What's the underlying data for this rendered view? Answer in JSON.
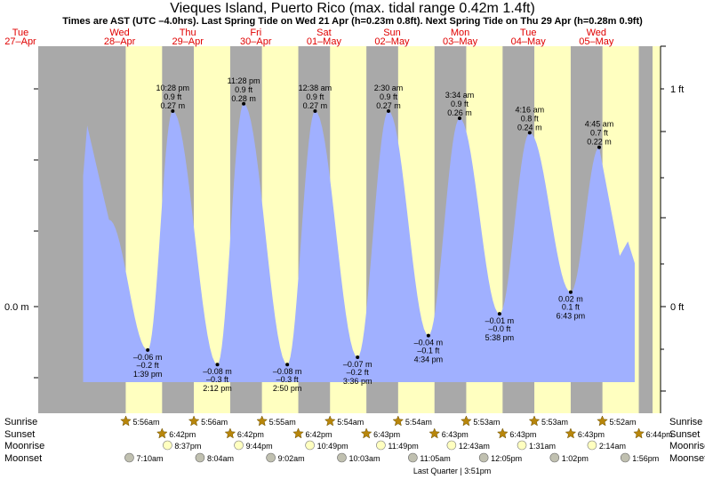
{
  "title": "Vieques Island, Puerto Rico (max. tidal range 0.42m 1.4ft)",
  "subtitle": "Times are AST (UTC –4.0hrs). Last Spring Tide on Wed 21 Apr (h=0.23m 0.8ft). Next Spring Tide on Thu 29 Apr (h=0.28m 0.9ft)",
  "colors": {
    "day": "#ffffc0",
    "night": "#a9a9a9",
    "water": "#a0b0ff",
    "day_label": "#e00000",
    "sun": "#b8860b",
    "moon_rise": "#ffffc0",
    "moon_set": "#c0c0b0"
  },
  "axes": {
    "left_label": "0.0 m",
    "right_labels": [
      "1 ft",
      "0 ft"
    ]
  },
  "days": [
    {
      "name": "Tue",
      "date": "27–Apr"
    },
    {
      "name": "Wed",
      "date": "28–Apr"
    },
    {
      "name": "Thu",
      "date": "29–Apr"
    },
    {
      "name": "Fri",
      "date": "30–Apr"
    },
    {
      "name": "Sat",
      "date": "01–May"
    },
    {
      "name": "Sun",
      "date": "02–May"
    },
    {
      "name": "Mon",
      "date": "03–May"
    },
    {
      "name": "Tue",
      "date": "04–May"
    },
    {
      "name": "Wed",
      "date": "05–May"
    }
  ],
  "chart_data": {
    "type": "area",
    "y_unit": "m",
    "extremes": [
      {
        "type": "low",
        "time": "1:39 pm",
        "m": "–0.06 m",
        "ft": "–0.2 ft",
        "value": -0.06
      },
      {
        "type": "high",
        "time": "10:28 pm",
        "m": "0.27 m",
        "ft": "0.9 ft",
        "value": 0.27
      },
      {
        "type": "low",
        "time": "2:12 pm",
        "m": "–0.08 m",
        "ft": "–0.3 ft",
        "value": -0.08
      },
      {
        "type": "high",
        "time": "11:28 pm",
        "m": "0.28 m",
        "ft": "0.9 ft",
        "value": 0.28
      },
      {
        "type": "low",
        "time": "2:50 pm",
        "m": "–0.08 m",
        "ft": "–0.3 ft",
        "value": -0.08
      },
      {
        "type": "high",
        "time": "12:38 am",
        "m": "0.27 m",
        "ft": "0.9 ft",
        "value": 0.27
      },
      {
        "type": "low",
        "time": "3:36 pm",
        "m": "–0.07 m",
        "ft": "–0.2 ft",
        "value": -0.07
      },
      {
        "type": "high",
        "time": "2:30 am",
        "m": "0.27 m",
        "ft": "0.9 ft",
        "value": 0.27
      },
      {
        "type": "low",
        "time": "4:34 pm",
        "m": "–0.04 m",
        "ft": "–0.1 ft",
        "value": -0.04
      },
      {
        "type": "high",
        "time": "3:34 am",
        "m": "0.26 m",
        "ft": "0.9 ft",
        "value": 0.26
      },
      {
        "type": "low",
        "time": "5:38 pm",
        "m": "–0.01 m",
        "ft": "–0.0 ft",
        "value": -0.01
      },
      {
        "type": "high",
        "time": "4:16 am",
        "m": "0.24 m",
        "ft": "0.8 ft",
        "value": 0.24
      },
      {
        "type": "low",
        "time": "6:43 pm",
        "m": "0.02 m",
        "ft": "0.1 ft",
        "value": 0.02
      },
      {
        "type": "high",
        "time": "4:45 am",
        "m": "0.22 m",
        "ft": "0.7 ft",
        "value": 0.22
      }
    ]
  },
  "astro": {
    "rows": [
      "Sunrise",
      "Sunset",
      "Moonrise",
      "Moonset"
    ],
    "sunrise": [
      "5:56am",
      "5:56am",
      "5:55am",
      "5:54am",
      "5:54am",
      "5:53am",
      "5:53am",
      "5:52am"
    ],
    "sunset": [
      "6:42pm",
      "6:42pm",
      "6:42pm",
      "6:43pm",
      "6:43pm",
      "6:43pm",
      "6:43pm",
      "6:44pm"
    ],
    "moonrise": [
      "8:37pm",
      "9:44pm",
      "10:49pm",
      "11:49pm",
      "12:43am",
      "1:31am",
      "2:14am"
    ],
    "moonset": [
      "7:10am",
      "8:04am",
      "9:02am",
      "10:03am",
      "11:05am",
      "12:05pm",
      "1:02pm",
      "1:56pm"
    ],
    "phase": "Last Quarter | 3:51pm"
  }
}
